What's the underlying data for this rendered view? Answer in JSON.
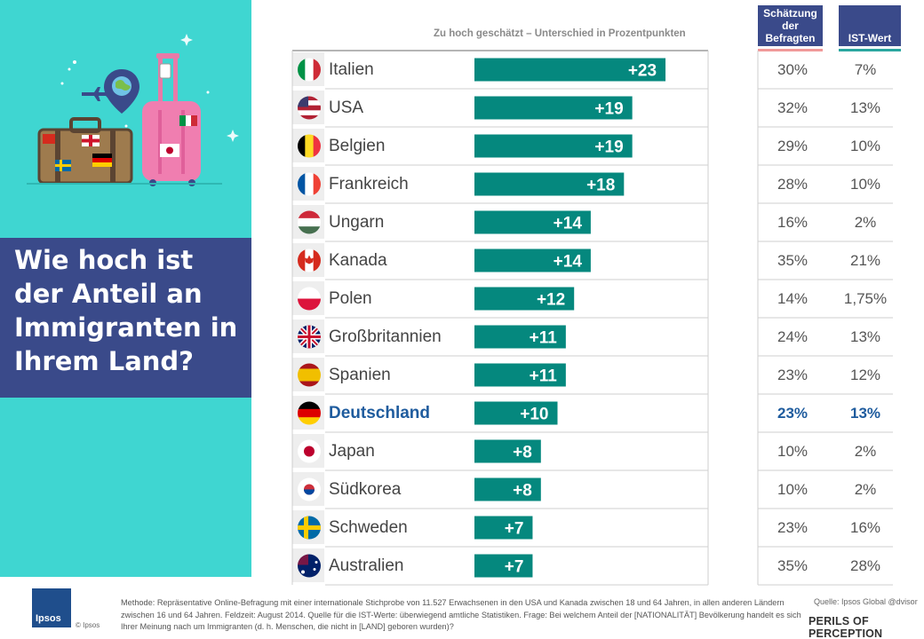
{
  "title": "Wie hoch ist der Anteil an Immigranten in Ihrem Land?",
  "header": {
    "caption": "Zu hoch geschätzt – Unterschied in Prozentpunkten",
    "est_col": "Schätzung der Befragten",
    "ist_col": "IST-Wert"
  },
  "colors": {
    "bar": "#05887e",
    "highlight": "#1f5c9e",
    "panel": "#3fd6d1",
    "title_bg": "#3a4a8a",
    "est_line": "#f09999",
    "ist_line": "#2aa69f"
  },
  "chart_data": {
    "type": "bar",
    "orientation": "horizontal",
    "title": "Zu hoch geschätzt – Unterschied in Prozentpunkten",
    "categories": [
      "Italien",
      "USA",
      "Belgien",
      "Frankreich",
      "Ungarn",
      "Kanada",
      "Polen",
      "Großbritannien",
      "Spanien",
      "Deutschland",
      "Japan",
      "Südkorea",
      "Schweden",
      "Australien"
    ],
    "values": [
      23,
      19,
      19,
      18,
      14,
      14,
      12,
      11,
      11,
      10,
      8,
      8,
      7,
      7
    ],
    "value_labels": [
      "+23",
      "+19",
      "+19",
      "+18",
      "+14",
      "+14",
      "+12",
      "+11",
      "+11",
      "+10",
      "+8",
      "+8",
      "+7",
      "+7"
    ],
    "xlim": [
      0,
      25
    ],
    "highlight": "Deutschland"
  },
  "rows": [
    {
      "country": "Italien",
      "flag": "italy-flag",
      "est": "30%",
      "ist": "7%"
    },
    {
      "country": "USA",
      "flag": "usa-flag",
      "est": "32%",
      "ist": "13%"
    },
    {
      "country": "Belgien",
      "flag": "belgium-flag",
      "est": "29%",
      "ist": "10%"
    },
    {
      "country": "Frankreich",
      "flag": "france-flag",
      "est": "28%",
      "ist": "10%"
    },
    {
      "country": "Ungarn",
      "flag": "hungary-flag",
      "est": "16%",
      "ist": "2%"
    },
    {
      "country": "Kanada",
      "flag": "canada-flag",
      "est": "35%",
      "ist": "21%"
    },
    {
      "country": "Polen",
      "flag": "poland-flag",
      "est": "14%",
      "ist": "1,75%"
    },
    {
      "country": "Großbritannien",
      "flag": "uk-flag",
      "est": "24%",
      "ist": "13%"
    },
    {
      "country": "Spanien",
      "flag": "spain-flag",
      "est": "23%",
      "ist": "12%"
    },
    {
      "country": "Deutschland",
      "flag": "germany-flag",
      "est": "23%",
      "ist": "13%"
    },
    {
      "country": "Japan",
      "flag": "japan-flag",
      "est": "10%",
      "ist": "2%"
    },
    {
      "country": "Südkorea",
      "flag": "south-korea-flag",
      "est": "10%",
      "ist": "2%"
    },
    {
      "country": "Schweden",
      "flag": "sweden-flag",
      "est": "23%",
      "ist": "16%"
    },
    {
      "country": "Australien",
      "flag": "australia-flag",
      "est": "35%",
      "ist": "28%"
    }
  ],
  "footer": {
    "method": "Methode: Repräsentative Online-Befragung  mit einer internationale Stichprobe von 11.527 Erwachsenen in den USA und Kanada zwischen 18 und 64 Jahren, in allen anderen Ländern zwischen 16 und 64 Jahren. Feldzeit: August 2014. Quelle für die IST-Werte: überwiegend amtliche Statistiken. Frage: Bei welchem Anteil der [NATIONALITÄT] Bevölkerung handelt es sich Ihrer Meinung nach um Immigranten (d. h. Menschen, die nicht in [LAND] geboren wurden)?",
    "source": "Quelle: Ipsos Global @dvisor",
    "brand": "PERILS OF PERCEPTION",
    "logo": "Ipsos",
    "copyright": "© Ipsos"
  }
}
